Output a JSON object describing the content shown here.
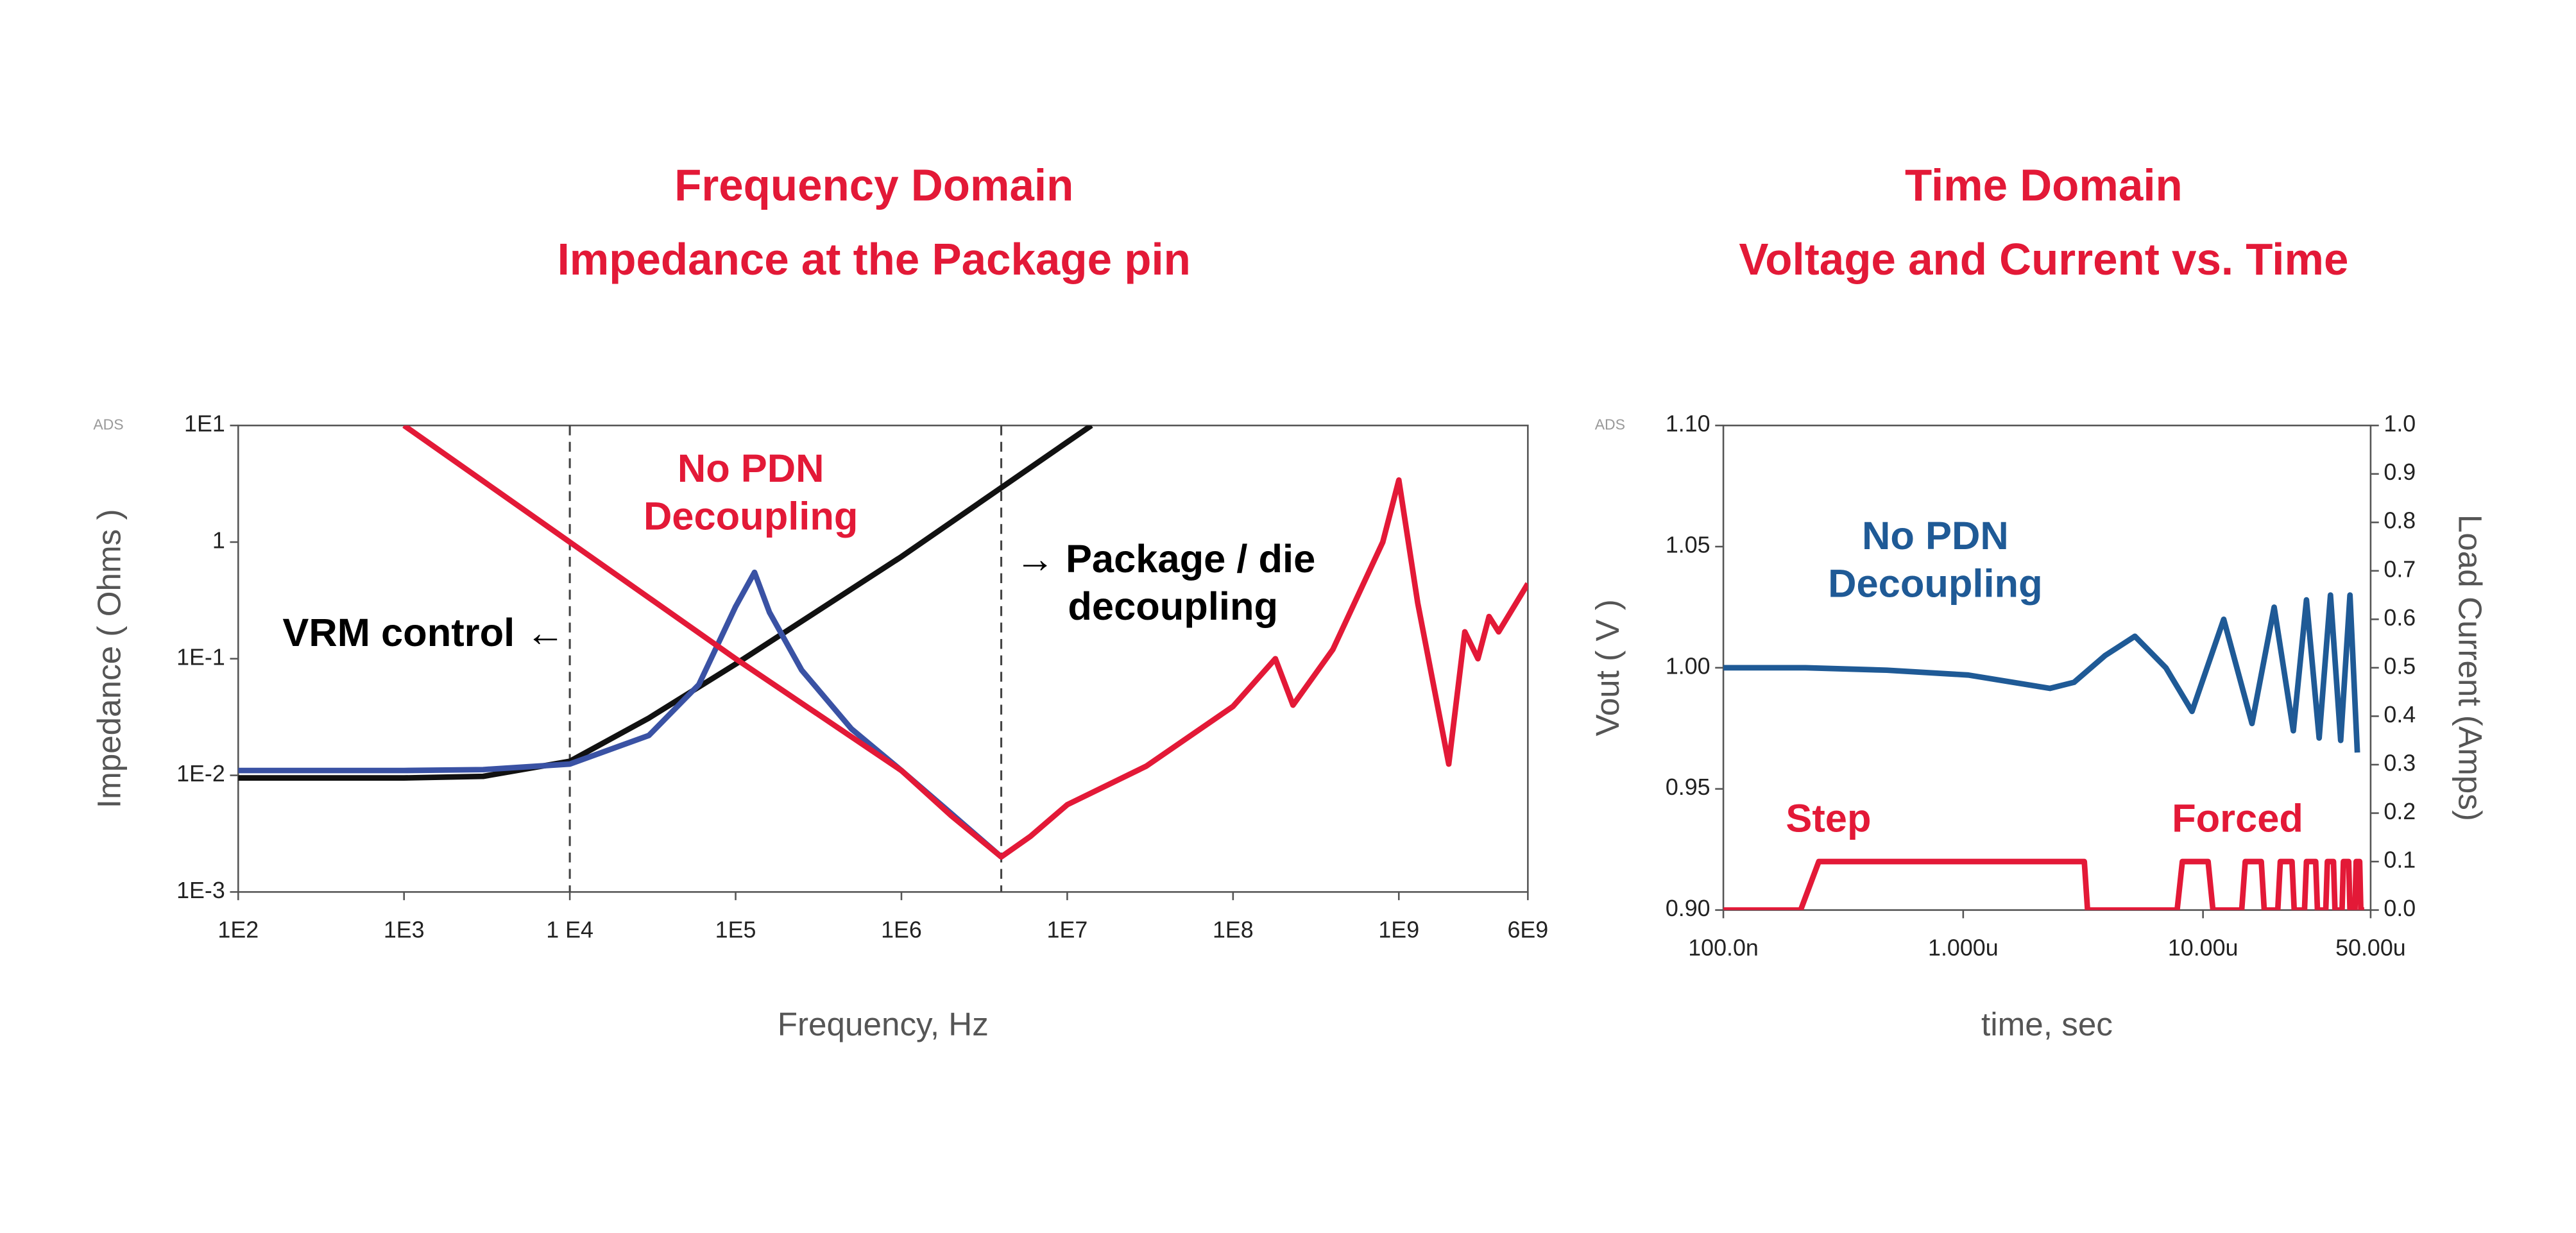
{
  "chart_data": [
    {
      "type": "line",
      "title": "Frequency Domain",
      "subtitle": "Impedance at the Package pin",
      "source_label": "ADS",
      "xlabel": "Frequency, Hz",
      "ylabel": "Impedance ( Ohms )",
      "log_x": true,
      "log_y": true,
      "grid": false,
      "xlim": [
        100,
        6000000000
      ],
      "xticks": [
        {
          "value": 100,
          "label": "1E2"
        },
        {
          "value": 1000,
          "label": "1E3"
        },
        {
          "value": 10000,
          "label": "1 E4"
        },
        {
          "value": 100000,
          "label": "1E5"
        },
        {
          "value": 1000000,
          "label": "1E6"
        },
        {
          "value": 10000000,
          "label": "1E7"
        },
        {
          "value": 100000000,
          "label": "1E8"
        },
        {
          "value": 1000000000,
          "label": "1E9"
        },
        {
          "value": 6000000000,
          "label": "6E9"
        }
      ],
      "ylim": [
        0.001,
        10
      ],
      "yticks": [
        {
          "value": 0.001,
          "label": "1E-3"
        },
        {
          "value": 0.01,
          "label": "1E-2"
        },
        {
          "value": 0.1,
          "label": "1E-1"
        },
        1,
        {
          "value": 10,
          "label": "1E1"
        }
      ],
      "vlines": [
        10000,
        4000000
      ],
      "series": [
        {
          "color": "#111111",
          "x": [
            100,
            1000,
            3000,
            10000,
            30000,
            100000,
            1000000,
            10000000,
            14000000
          ],
          "values": [
            0.0095,
            0.0095,
            0.0098,
            0.0132,
            0.031,
            0.09,
            0.75,
            7.2,
            10
          ]
        },
        {
          "color": "#3a52a4",
          "x": [
            100,
            1000,
            3000,
            10000,
            30000,
            60000,
            100000,
            130000,
            160000,
            250000,
            500000,
            1000000,
            2000000,
            4000000
          ],
          "values": [
            0.011,
            0.011,
            0.0112,
            0.0125,
            0.022,
            0.06,
            0.28,
            0.55,
            0.25,
            0.08,
            0.025,
            0.011,
            0.0047,
            0.002
          ]
        },
        {
          "color": "#e31937",
          "x": [
            1000,
            10000,
            100000,
            1000000,
            2000000,
            4000000,
            6000000,
            10000000,
            30000000,
            100000000,
            180000000,
            230000000,
            400000000,
            800000000,
            1000000000,
            1300000000,
            2000000000,
            2500000000,
            3000000000,
            3500000000,
            4000000000,
            6000000000
          ],
          "values": [
            10,
            1,
            0.1,
            0.011,
            0.0045,
            0.002,
            0.003,
            0.0056,
            0.012,
            0.039,
            0.1,
            0.04,
            0.12,
            1,
            3.4,
            0.3,
            0.0125,
            0.17,
            0.1,
            0.23,
            0.17,
            0.44
          ]
        }
      ],
      "annotations": [
        {
          "lines": [
            "No PDN",
            "Decoupling"
          ],
          "color": "#e31937"
        },
        {
          "lines": [
            "VRM control ←"
          ],
          "color": "#000000"
        },
        {
          "lines": [
            "→ Package / die",
            "decoupling"
          ],
          "color": "#000000"
        }
      ]
    },
    {
      "type": "line",
      "title": "Time Domain",
      "subtitle": "Voltage and Current vs. Time",
      "source_label": "ADS",
      "xlabel": "time, sec",
      "ylabel": "Vout ( V )",
      "y2label": "Load Current (Amps)",
      "log_x": true,
      "log_y": false,
      "grid": false,
      "xlim": [
        1e-07,
        5e-05
      ],
      "xticks": [
        {
          "value": 1e-07,
          "label": "100.0n"
        },
        {
          "value": 1e-06,
          "label": "1.000u"
        },
        {
          "value": 1e-05,
          "label": "10.00u"
        },
        {
          "value": 5e-05,
          "label": "50.00u"
        }
      ],
      "ylim": [
        0.9,
        1.1
      ],
      "yticks": [
        {
          "value": 0.9,
          "label": "0.90"
        },
        {
          "value": 0.95,
          "label": "0.95"
        },
        {
          "value": 1.0,
          "label": "1.00"
        },
        {
          "value": 1.05,
          "label": "1.05"
        },
        {
          "value": 1.1,
          "label": "1.10"
        }
      ],
      "y2lim": [
        0,
        1
      ],
      "y2ticks": [
        {
          "value": 0,
          "label": "0.0"
        },
        {
          "value": 0.1,
          "label": "0.1"
        },
        {
          "value": 0.2,
          "label": "0.2"
        },
        {
          "value": 0.3,
          "label": "0.3"
        },
        {
          "value": 0.4,
          "label": "0.4"
        },
        {
          "value": 0.5,
          "label": "0.5"
        },
        {
          "value": 0.6,
          "label": "0.6"
        },
        {
          "value": 0.7,
          "label": "0.7"
        },
        {
          "value": 0.8,
          "label": "0.8"
        },
        {
          "value": 0.9,
          "label": "0.9"
        },
        {
          "value": 1,
          "label": "1.0"
        }
      ],
      "series": [
        {
          "color": "#1f5a96",
          "x": [
            1e-07,
            2.2e-07,
            4.8e-07,
            1.05e-06,
            2.3e-06,
            2.9e-06,
            3.9e-06,
            5.2e-06,
            7e-06,
            9e-06,
            1.22e-05,
            1.6e-05,
            1.98e-05,
            2.38e-05,
            2.7e-05,
            3.05e-05,
            3.4e-05,
            3.75e-05,
            4.1e-05,
            4.4e-05
          ],
          "values": [
            1.0,
            1.0,
            0.999,
            0.997,
            0.9915,
            0.994,
            1.005,
            1.013,
            1.0,
            0.982,
            1.02,
            0.977,
            1.025,
            0.974,
            1.028,
            0.971,
            1.03,
            0.97,
            1.03,
            0.965
          ]
        },
        {
          "color": "#e31937",
          "axis": "y2",
          "x": [
            1e-07,
            2.1e-07,
            2.5e-07,
            3.2e-06,
            3.3e-06,
            7.8e-06,
            8.2e-06,
            1.05e-05,
            1.1e-05,
            1.45e-05,
            1.5e-05,
            1.75e-05,
            1.8e-05,
            2.05e-05,
            2.1e-05,
            2.35e-05,
            2.4e-05,
            2.65e-05,
            2.7e-05,
            2.95e-05,
            3e-05,
            3.25e-05,
            3.3e-05,
            3.5e-05,
            3.55e-05,
            3.8e-05,
            3.85e-05,
            4.05e-05,
            4.1e-05,
            4.3e-05,
            4.35e-05,
            4.5e-05,
            4.55e-05,
            4.7e-05
          ],
          "values": [
            0,
            0,
            0.1,
            0.1,
            0,
            0,
            0.1,
            0.1,
            0,
            0,
            0.1,
            0.1,
            0,
            0,
            0.1,
            0.1,
            0,
            0,
            0.1,
            0.1,
            0,
            0,
            0.1,
            0.1,
            0,
            0,
            0.1,
            0.1,
            0,
            0,
            0.1,
            0.1,
            0,
            0
          ]
        }
      ],
      "annotations": [
        {
          "lines": [
            "No PDN",
            "Decoupling"
          ],
          "color": "#1f5a96"
        },
        {
          "lines": [
            "Step"
          ],
          "color": "#e31937"
        },
        {
          "lines": [
            "Forced"
          ],
          "color": "#e31937"
        }
      ]
    }
  ]
}
